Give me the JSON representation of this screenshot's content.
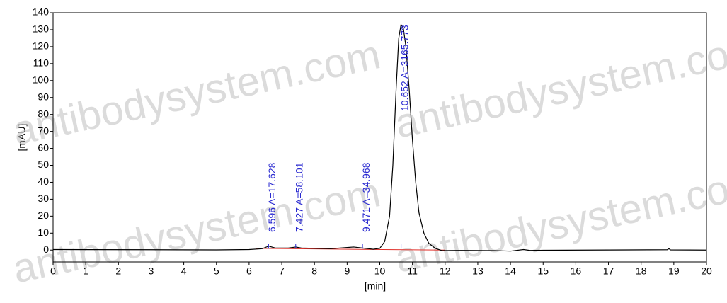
{
  "chart_data": {
    "type": "line",
    "x_label": "[min]",
    "y_label": "[mAU]",
    "xlim": [
      0,
      20
    ],
    "xticks": [
      0,
      1,
      2,
      3,
      4,
      5,
      6,
      7,
      8,
      9,
      10,
      11,
      12,
      13,
      14,
      15,
      16,
      17,
      18,
      19,
      20
    ],
    "ylim": [
      -7,
      140
    ],
    "yticks": [
      0,
      10,
      20,
      30,
      40,
      50,
      60,
      70,
      80,
      90,
      100,
      110,
      120,
      130,
      140
    ],
    "series": [
      {
        "color": "#000000",
        "x": [
          0,
          3,
          5,
          6,
          6.4,
          6.6,
          6.8,
          7.2,
          7.43,
          7.6,
          8.5,
          9.0,
          9.2,
          9.47,
          9.8,
          10.0,
          10.15,
          10.3,
          10.4,
          10.5,
          10.58,
          10.65,
          10.72,
          10.8,
          10.9,
          11.0,
          11.1,
          11.2,
          11.35,
          11.5,
          11.7,
          11.9,
          12.5,
          13.5,
          14,
          14.4,
          14.6,
          15,
          18.8,
          18.85,
          18.9,
          20
        ],
        "values": [
          0.3,
          0.2,
          0.1,
          0.3,
          0.8,
          2.3,
          1.2,
          1.2,
          1.8,
          1.2,
          0.8,
          1.5,
          1.8,
          1.2,
          0.5,
          1,
          5,
          20,
          50,
          95,
          125,
          133,
          131,
          120,
          95,
          65,
          40,
          22,
          10,
          4,
          1,
          -0.3,
          -0.2,
          -0.3,
          -0.6,
          0.3,
          -0.2,
          -0.1,
          0.2,
          0.8,
          0.1,
          0
        ]
      }
    ],
    "baseline": {
      "color": "#e0302a",
      "x": [
        6.2,
        10.1,
        12.0
      ],
      "values": [
        1.0,
        0.3,
        0.0
      ]
    },
    "peaks": [
      {
        "x": 6.596,
        "label": "6.596 A=17.628"
      },
      {
        "x": 7.427,
        "label": "7.427 A=58.101"
      },
      {
        "x": 9.471,
        "label": "9.471 A=34.968"
      },
      {
        "x": 10.652,
        "label": "10.652 A=3165.773"
      }
    ],
    "peak_color": "#2a2ad0",
    "watermark": "antibodysystem.com"
  }
}
